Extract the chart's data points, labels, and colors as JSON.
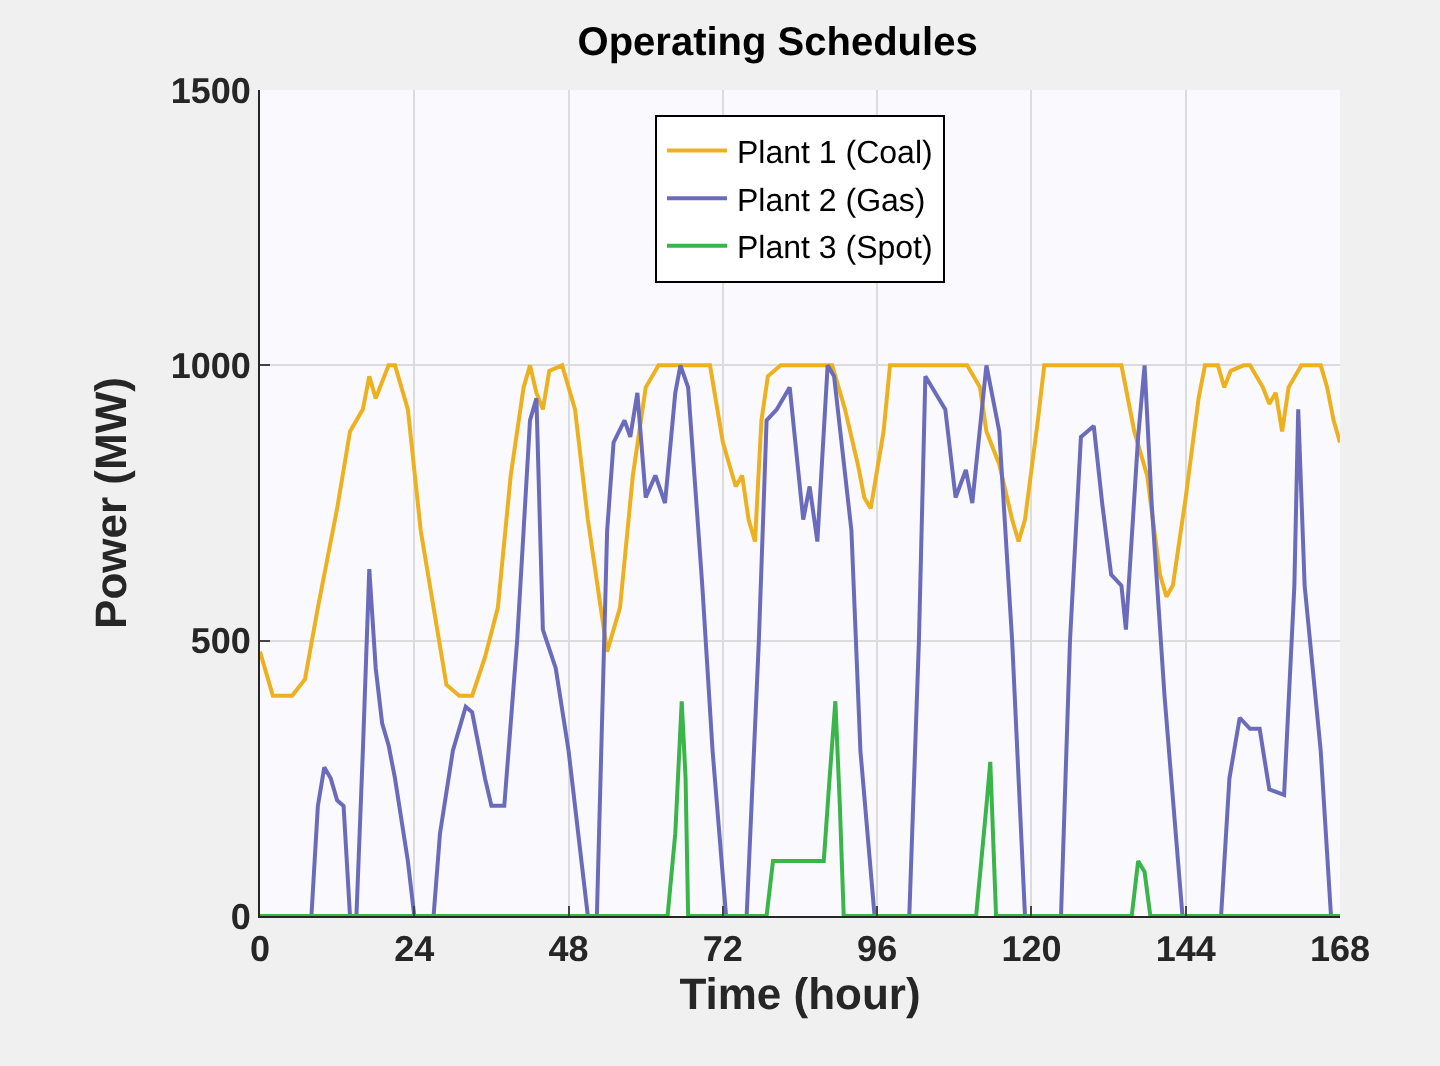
{
  "chart_data": {
    "type": "line",
    "title": "Operating Schedules",
    "xlabel": "Time (hour)",
    "ylabel": "Power (MW)",
    "xlim": [
      0,
      168
    ],
    "xticks": [
      0,
      24,
      48,
      72,
      96,
      120,
      144,
      168
    ],
    "ylim": [
      0,
      1500
    ],
    "yticks": [
      0,
      500,
      1000,
      1500
    ],
    "grid": true,
    "legend": "top",
    "line_style": "solid",
    "marker": "none",
    "series": [
      {
        "name": "Plant 1 (Coal)",
        "color": "#edb120",
        "x": [
          0,
          2,
          5,
          7,
          9,
          10,
          12,
          14,
          16,
          17,
          18,
          20,
          21,
          23,
          25,
          27,
          29,
          31,
          33,
          35,
          37,
          39,
          41,
          42,
          43,
          44,
          45,
          47,
          49,
          51,
          53,
          54,
          56,
          58,
          60,
          62,
          70,
          72,
          73,
          74,
          75,
          76,
          77,
          78,
          79,
          81,
          89,
          91,
          93,
          94,
          95,
          97,
          98,
          110,
          112,
          113,
          115,
          117,
          118,
          119,
          121,
          122,
          134,
          136,
          138,
          140,
          141,
          142,
          144,
          146,
          147,
          149,
          150,
          151,
          153,
          154,
          156,
          157,
          158,
          159,
          160,
          162,
          165,
          166,
          167,
          168
        ],
        "values": [
          480,
          400,
          400,
          430,
          560,
          620,
          740,
          880,
          920,
          980,
          940,
          1000,
          1000,
          920,
          700,
          560,
          420,
          400,
          400,
          470,
          560,
          800,
          960,
          1000,
          950,
          920,
          990,
          1000,
          920,
          720,
          560,
          480,
          560,
          800,
          960,
          1000,
          1000,
          860,
          820,
          780,
          800,
          720,
          680,
          900,
          980,
          1000,
          1000,
          920,
          820,
          760,
          740,
          880,
          1000,
          1000,
          960,
          880,
          820,
          720,
          680,
          720,
          900,
          1000,
          1000,
          880,
          800,
          620,
          580,
          600,
          760,
          940,
          1000,
          1000,
          960,
          990,
          1000,
          1000,
          960,
          930,
          950,
          880,
          960,
          1000,
          1000,
          960,
          900,
          860
        ]
      },
      {
        "name": "Plant 2 (Gas)",
        "color": "#6b6bbb",
        "x": [
          0,
          8,
          9,
          10,
          11,
          12,
          13,
          14,
          15,
          16,
          17,
          18,
          19,
          20,
          21,
          23,
          24,
          27,
          28,
          30,
          32,
          33,
          35,
          36,
          38,
          39,
          40,
          41,
          42,
          43,
          44,
          46,
          48,
          50,
          51,
          52.4,
          54,
          55,
          56.7,
          57.6,
          58.7,
          60,
          61.5,
          63,
          64.6,
          65.4,
          66.6,
          68.8,
          70.4,
          72.5,
          75.7,
          77.6,
          78.8,
          80.4,
          82.4,
          84.5,
          85.5,
          86.7,
          88.3,
          89.3,
          92,
          93.4,
          95.6,
          101,
          102.5,
          103.5,
          106.6,
          108.2,
          109.8,
          110.8,
          113,
          115,
          117,
          119,
          124.6,
          126,
          127.7,
          129.7,
          131,
          132.4,
          134,
          134.7,
          136.6,
          137.6,
          138.7,
          140.7,
          143.5,
          149.5,
          150.8,
          152.4,
          154,
          155.5,
          157,
          159.3,
          160.9,
          161.5,
          162.5,
          165,
          166.6,
          168
        ],
        "values": [
          0,
          0,
          200,
          270,
          250,
          210,
          200,
          0,
          0,
          300,
          630,
          450,
          350,
          310,
          250,
          100,
          0,
          0,
          150,
          300,
          380,
          370,
          250,
          200,
          200,
          350,
          500,
          700,
          900,
          940,
          520,
          450,
          300,
          100,
          0,
          0,
          700,
          860,
          900,
          870,
          950,
          760,
          800,
          750,
          950,
          1000,
          960,
          600,
          300,
          0,
          0,
          500,
          900,
          920,
          960,
          720,
          780,
          680,
          1000,
          980,
          700,
          300,
          0,
          0,
          500,
          980,
          920,
          760,
          810,
          750,
          1000,
          880,
          500,
          0,
          0,
          500,
          870,
          890,
          750,
          620,
          600,
          520,
          870,
          1000,
          750,
          400,
          0,
          0,
          250,
          360,
          340,
          340,
          230,
          220,
          600,
          920,
          600,
          300,
          0,
          0
        ]
      },
      {
        "name": "Plant 3 (Spot)",
        "color": "#3ab54a",
        "x": [
          0,
          63.4,
          64.6,
          65.6,
          66.2,
          66.6,
          78.8,
          79.8,
          87.7,
          88.6,
          89.5,
          90.2,
          90.8,
          111.4,
          113,
          113.6,
          114.5,
          135.6,
          136.6,
          137.6,
          138.5,
          168
        ],
        "values": [
          0,
          0,
          150,
          390,
          250,
          0,
          0,
          100,
          100,
          250,
          390,
          200,
          0,
          0,
          200,
          280,
          0,
          0,
          100,
          80,
          0,
          0
        ]
      }
    ]
  }
}
